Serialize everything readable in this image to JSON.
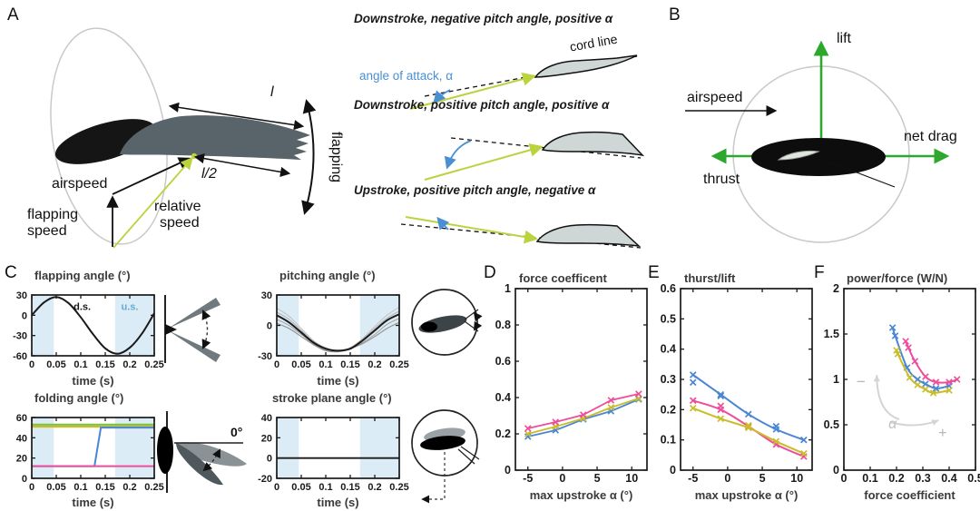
{
  "panel_labels": {
    "a": "A",
    "b": "B",
    "c": "C",
    "d": "D",
    "e": "E",
    "f": "F"
  },
  "panel_a": {
    "airspeed": "airspeed",
    "flapping_speed_1": "flapping",
    "flapping_speed_2": "speed",
    "relative_speed_1": "relative",
    "relative_speed_2": "speed",
    "wing_length": "l",
    "half_length": "l/2",
    "flapping_axis": "flapping",
    "airfoil_rows": [
      {
        "caption": "Downstroke, negative pitch angle, positive α"
      },
      {
        "caption": "Downstroke, positive pitch angle, positive α"
      },
      {
        "caption": "Upstroke, positive pitch angle, negative α"
      }
    ],
    "angle_of_attack": "angle of attack, α",
    "cord_line": "cord line"
  },
  "panel_b": {
    "lift": "lift",
    "airspeed": "airspeed",
    "net_drag": "net drag",
    "thrust": "thrust"
  },
  "panel_c": {
    "fold_zero": "0°"
  },
  "colors": {
    "pink": "#ee4d9b",
    "yellow": "#c9bd2a",
    "blue": "#4a86d4",
    "green_line": "#7cc143",
    "green_arrow": "#2ca82c",
    "shade": "#dcecf6",
    "aoa_blue": "#4a8fd3",
    "relative_speed_yellow": "#bcd23e",
    "gray_annotation": "#c9c9c9"
  },
  "chart_data": [
    {
      "type": "line",
      "title": "flapping angle (°)",
      "xlabel": "time (s)",
      "xlim": [
        0,
        0.25
      ],
      "ylim": [
        -60,
        30
      ],
      "xticks": [
        0,
        0.05,
        0.1,
        0.15,
        0.2,
        0.25
      ],
      "xtick_labels": [
        "0",
        "0.05",
        "0.1",
        "0.15",
        "0.2",
        "0.25"
      ],
      "yticks": [
        -60,
        -30,
        0,
        30
      ],
      "ytick_labels": [
        "-60",
        "-30",
        "0",
        "30"
      ],
      "shaded_x": [
        [
          0,
          0.045
        ],
        [
          0.17,
          0.25
        ]
      ],
      "shade_color": "#dcecf6",
      "series": [
        {
          "name": "flapping angle",
          "color": "#1a1a1a",
          "width": 2,
          "smooth": true,
          "x": [
            0,
            0.025,
            0.05,
            0.075,
            0.1,
            0.125,
            0.15,
            0.175,
            0.2,
            0.225,
            0.25
          ],
          "y": [
            0,
            19,
            27,
            18,
            -3,
            -28,
            -49,
            -57,
            -48,
            -27,
            3
          ]
        }
      ],
      "annotations": [
        {
          "text": "d.s.",
          "x": 0.103,
          "y": 8,
          "color": "#1a1a1a",
          "size": 11,
          "weight": 700
        },
        {
          "text": "u.s.",
          "x": 0.2,
          "y": 8,
          "color": "#64a9d8",
          "size": 11,
          "weight": 700
        }
      ]
    },
    {
      "type": "line",
      "title": "pitching angle (°)",
      "xlabel": "time (s)",
      "xlim": [
        0,
        0.25
      ],
      "ylim": [
        -30,
        30
      ],
      "xticks": [
        0,
        0.05,
        0.1,
        0.15,
        0.2,
        0.25
      ],
      "xtick_labels": [
        "0",
        "0.05",
        "0.1",
        "0.15",
        "0.2",
        "0.25"
      ],
      "yticks": [
        -30,
        0,
        30
      ],
      "ytick_labels": [
        "-30",
        "0",
        "30"
      ],
      "shaded_x": [
        [
          0,
          0.045
        ],
        [
          0.17,
          0.25
        ]
      ],
      "shade_color": "#dcecf6",
      "series": [
        {
          "name": "variant 1",
          "color": "#c4c4c4",
          "width": 1.1,
          "smooth": true,
          "x": [
            0,
            0.025,
            0.05,
            0.075,
            0.1,
            0.125,
            0.15,
            0.175,
            0.2,
            0.225,
            0.25
          ],
          "y": [
            17,
            9,
            -3,
            -15,
            -22,
            -25,
            -22,
            -13,
            -1,
            10,
            18
          ]
        },
        {
          "name": "variant 2",
          "color": "#b3b3b3",
          "width": 1.1,
          "smooth": true,
          "x": [
            0,
            0.025,
            0.05,
            0.075,
            0.1,
            0.125,
            0.15,
            0.175,
            0.2,
            0.225,
            0.25
          ],
          "y": [
            13,
            6,
            -5,
            -16,
            -23,
            -25,
            -22,
            -14,
            -3,
            7,
            14
          ]
        },
        {
          "name": "variant 3",
          "color": "#a6a6a6",
          "width": 1.1,
          "smooth": true,
          "x": [
            0,
            0.025,
            0.05,
            0.075,
            0.1,
            0.125,
            0.15,
            0.175,
            0.2,
            0.225,
            0.25
          ],
          "y": [
            6,
            0,
            -9,
            -18,
            -24,
            -25,
            -23,
            -17,
            -9,
            1,
            7
          ]
        },
        {
          "name": "variant 4",
          "color": "#8f8f8f",
          "width": 1.1,
          "smooth": true,
          "x": [
            0,
            0.025,
            0.05,
            0.075,
            0.1,
            0.125,
            0.15,
            0.175,
            0.2,
            0.225,
            0.25
          ],
          "y": [
            2,
            -3,
            -11,
            -19,
            -25,
            -26,
            -23,
            -18,
            -11,
            -3,
            3
          ]
        },
        {
          "name": "pitching angle",
          "color": "#1a1a1a",
          "width": 2,
          "smooth": true,
          "x": [
            0,
            0.025,
            0.05,
            0.075,
            0.1,
            0.125,
            0.15,
            0.175,
            0.2,
            0.225,
            0.25
          ],
          "y": [
            10,
            3,
            -7,
            -17,
            -23,
            -25,
            -23,
            -15,
            -5,
            5,
            11
          ]
        }
      ]
    },
    {
      "type": "line",
      "title": "folding angle (°)",
      "xlabel": "time (s)",
      "xlim": [
        0,
        0.25
      ],
      "ylim": [
        0,
        60
      ],
      "xticks": [
        0,
        0.05,
        0.1,
        0.15,
        0.2,
        0.25
      ],
      "xtick_labels": [
        "0",
        "0.05",
        "0.1",
        "0.15",
        "0.2",
        "0.25"
      ],
      "yticks": [
        0,
        20,
        40,
        60
      ],
      "ytick_labels": [
        "0",
        "20",
        "40",
        "60"
      ],
      "shaded_x": [
        [
          0,
          0.045
        ],
        [
          0.17,
          0.25
        ]
      ],
      "shade_color": "#dcecf6",
      "series": [
        {
          "name": "green constant",
          "color": "#7cc143",
          "width": 2.2,
          "x": [
            0,
            0.25
          ],
          "y": [
            53,
            53
          ]
        },
        {
          "name": "yellow constant",
          "color": "#c9bd2a",
          "width": 2.2,
          "x": [
            0,
            0.25
          ],
          "y": [
            51,
            51
          ]
        },
        {
          "name": "blue step",
          "color": "#4a86d4",
          "width": 2,
          "x": [
            0,
            0.128,
            0.141,
            0.25
          ],
          "y": [
            12,
            12,
            50,
            50
          ]
        },
        {
          "name": "pink constant",
          "color": "#ee4d9b",
          "width": 2,
          "x": [
            0,
            0.25
          ],
          "y": [
            12,
            12
          ]
        }
      ]
    },
    {
      "type": "line",
      "title": "stroke plane angle (°)",
      "xlabel": "time (s)",
      "xlim": [
        0,
        0.25
      ],
      "ylim": [
        -20,
        40
      ],
      "xticks": [
        0,
        0.05,
        0.1,
        0.15,
        0.2,
        0.25
      ],
      "xtick_labels": [
        "0",
        "0.05",
        "0.1",
        "0.15",
        "0.2",
        "0.25"
      ],
      "yticks": [
        -20,
        0,
        20,
        40
      ],
      "ytick_labels": [
        "-20",
        "0",
        "20",
        "40"
      ],
      "shaded_x": [
        [
          0,
          0.045
        ],
        [
          0.17,
          0.25
        ]
      ],
      "shade_color": "#dcecf6",
      "series": [
        {
          "name": "stroke plane angle",
          "color": "#1a1a1a",
          "width": 1.8,
          "x": [
            0,
            0.25
          ],
          "y": [
            0,
            0
          ]
        }
      ]
    },
    {
      "type": "line",
      "title": "force coefficent",
      "xlabel": "max upstroke α (°)",
      "xlim": [
        -6.8,
        12.2
      ],
      "ylim": [
        0,
        1
      ],
      "xticks": [
        -5,
        0,
        5,
        10
      ],
      "xtick_labels": [
        "-5",
        "0",
        "5",
        "10"
      ],
      "yticks": [
        0,
        0.2,
        0.4,
        0.6,
        0.8,
        1
      ],
      "ytick_labels": [
        "0",
        "0.2",
        "0.4",
        "0.6",
        "0.8",
        "1"
      ],
      "series": [
        {
          "name": "blue",
          "color": "#4a86d4",
          "width": 1.8,
          "marker": "x",
          "x": [
            -5,
            -1,
            3,
            7,
            11
          ],
          "y": [
            0.185,
            0.22,
            0.28,
            0.325,
            0.39
          ]
        },
        {
          "name": "yellow",
          "color": "#c9bd2a",
          "width": 1.8,
          "marker": "x",
          "x": [
            -5,
            -1,
            3,
            7,
            11
          ],
          "y": [
            0.2,
            0.24,
            0.285,
            0.345,
            0.395
          ]
        },
        {
          "name": "pink",
          "color": "#ee4d9b",
          "width": 1.8,
          "marker": "x",
          "x": [
            -5,
            -1,
            3,
            7,
            11
          ],
          "y": [
            0.23,
            0.265,
            0.305,
            0.385,
            0.42
          ]
        }
      ]
    },
    {
      "type": "line",
      "title": "thurst/lift",
      "xlabel": "max upstroke α (°)",
      "xlim": [
        -6.8,
        12.2
      ],
      "ylim": [
        0,
        0.6
      ],
      "xticks": [
        -5,
        0,
        5,
        10
      ],
      "xtick_labels": [
        "-5",
        "0",
        "5",
        "10"
      ],
      "yticks": [
        0,
        0.1,
        0.2,
        0.3,
        0.4,
        0.5,
        0.6
      ],
      "ytick_labels": [
        "0",
        "0.1",
        "0.2",
        "0.3",
        "0.4",
        "0.5",
        "0.6"
      ],
      "series": [
        {
          "name": "blue",
          "color": "#4a86d4",
          "width": 2,
          "marker": "x",
          "smooth": true,
          "x": [
            -5,
            -1,
            3,
            7,
            11
          ],
          "y": [
            0.315,
            0.25,
            0.185,
            0.135,
            0.1
          ],
          "extra": [
            [
              -5,
              0.29
            ],
            [
              -1,
              0.245
            ],
            [
              7,
              0.145
            ]
          ]
        },
        {
          "name": "pink",
          "color": "#ee4d9b",
          "width": 2,
          "marker": "x",
          "smooth": true,
          "x": [
            -5,
            -1,
            3,
            7,
            11
          ],
          "y": [
            0.23,
            0.2,
            0.145,
            0.085,
            0.045
          ],
          "extra": [
            [
              -1,
              0.212
            ]
          ]
        },
        {
          "name": "yellow",
          "color": "#c9bd2a",
          "width": 2,
          "marker": "x",
          "smooth": true,
          "x": [
            -5,
            -1,
            3,
            7,
            11
          ],
          "y": [
            0.205,
            0.17,
            0.14,
            0.095,
            0.055
          ],
          "extra": [
            [
              3,
              0.148
            ]
          ]
        }
      ]
    },
    {
      "type": "line",
      "title": "power/force (W/N)",
      "xlabel": "force coefficient",
      "xlim": [
        0,
        0.5
      ],
      "ylim": [
        0,
        2
      ],
      "xticks": [
        0,
        0.1,
        0.2,
        0.3,
        0.4,
        0.5
      ],
      "xtick_labels": [
        "0",
        "0.1",
        "0.2",
        "0.3",
        "0.4",
        "0.5"
      ],
      "yticks": [
        0,
        0.5,
        1,
        1.5,
        2
      ],
      "ytick_labels": [
        "0",
        "0.5",
        "1",
        "1.5",
        "2"
      ],
      "series": [
        {
          "name": "blue",
          "color": "#4a86d4",
          "width": 2,
          "marker": "x",
          "smooth": true,
          "x": [
            0.185,
            0.195,
            0.24,
            0.28,
            0.31,
            0.35,
            0.4
          ],
          "y": [
            1.57,
            1.48,
            1.13,
            1.0,
            0.95,
            0.9,
            0.93
          ]
        },
        {
          "name": "pink",
          "color": "#ee4d9b",
          "width": 2,
          "marker": "x",
          "smooth": true,
          "x": [
            0.235,
            0.245,
            0.27,
            0.31,
            0.35,
            0.4,
            0.43
          ],
          "y": [
            1.42,
            1.35,
            1.2,
            1.03,
            0.97,
            0.97,
            1.0
          ]
        },
        {
          "name": "yellow",
          "color": "#c9bd2a",
          "width": 2,
          "marker": "x",
          "smooth": true,
          "x": [
            0.2,
            0.205,
            0.25,
            0.28,
            0.31,
            0.34,
            0.4
          ],
          "y": [
            1.32,
            1.28,
            1.02,
            0.94,
            0.89,
            0.85,
            0.88
          ]
        }
      ],
      "annotations": [
        {
          "text": "−",
          "x": 0.065,
          "y": 0.92,
          "color": "#b4b4b4",
          "size": 17,
          "weight": 400
        },
        {
          "text": "α",
          "x": 0.185,
          "y": 0.46,
          "color": "#c0c0c0",
          "size": 16,
          "weight": 400,
          "italic": true
        },
        {
          "text": "+",
          "x": 0.375,
          "y": 0.36,
          "color": "#b4b4b4",
          "size": 16,
          "weight": 400
        }
      ],
      "arrows": [
        {
          "from": [
            0.21,
            0.56
          ],
          "ctrl": [
            0.125,
            0.64
          ],
          "to": [
            0.125,
            1.05
          ],
          "color": "#d4d4d4"
        },
        {
          "from": [
            0.175,
            0.53
          ],
          "ctrl": [
            0.27,
            0.45
          ],
          "to": [
            0.36,
            0.55
          ],
          "color": "#d4d4d4"
        }
      ]
    }
  ]
}
